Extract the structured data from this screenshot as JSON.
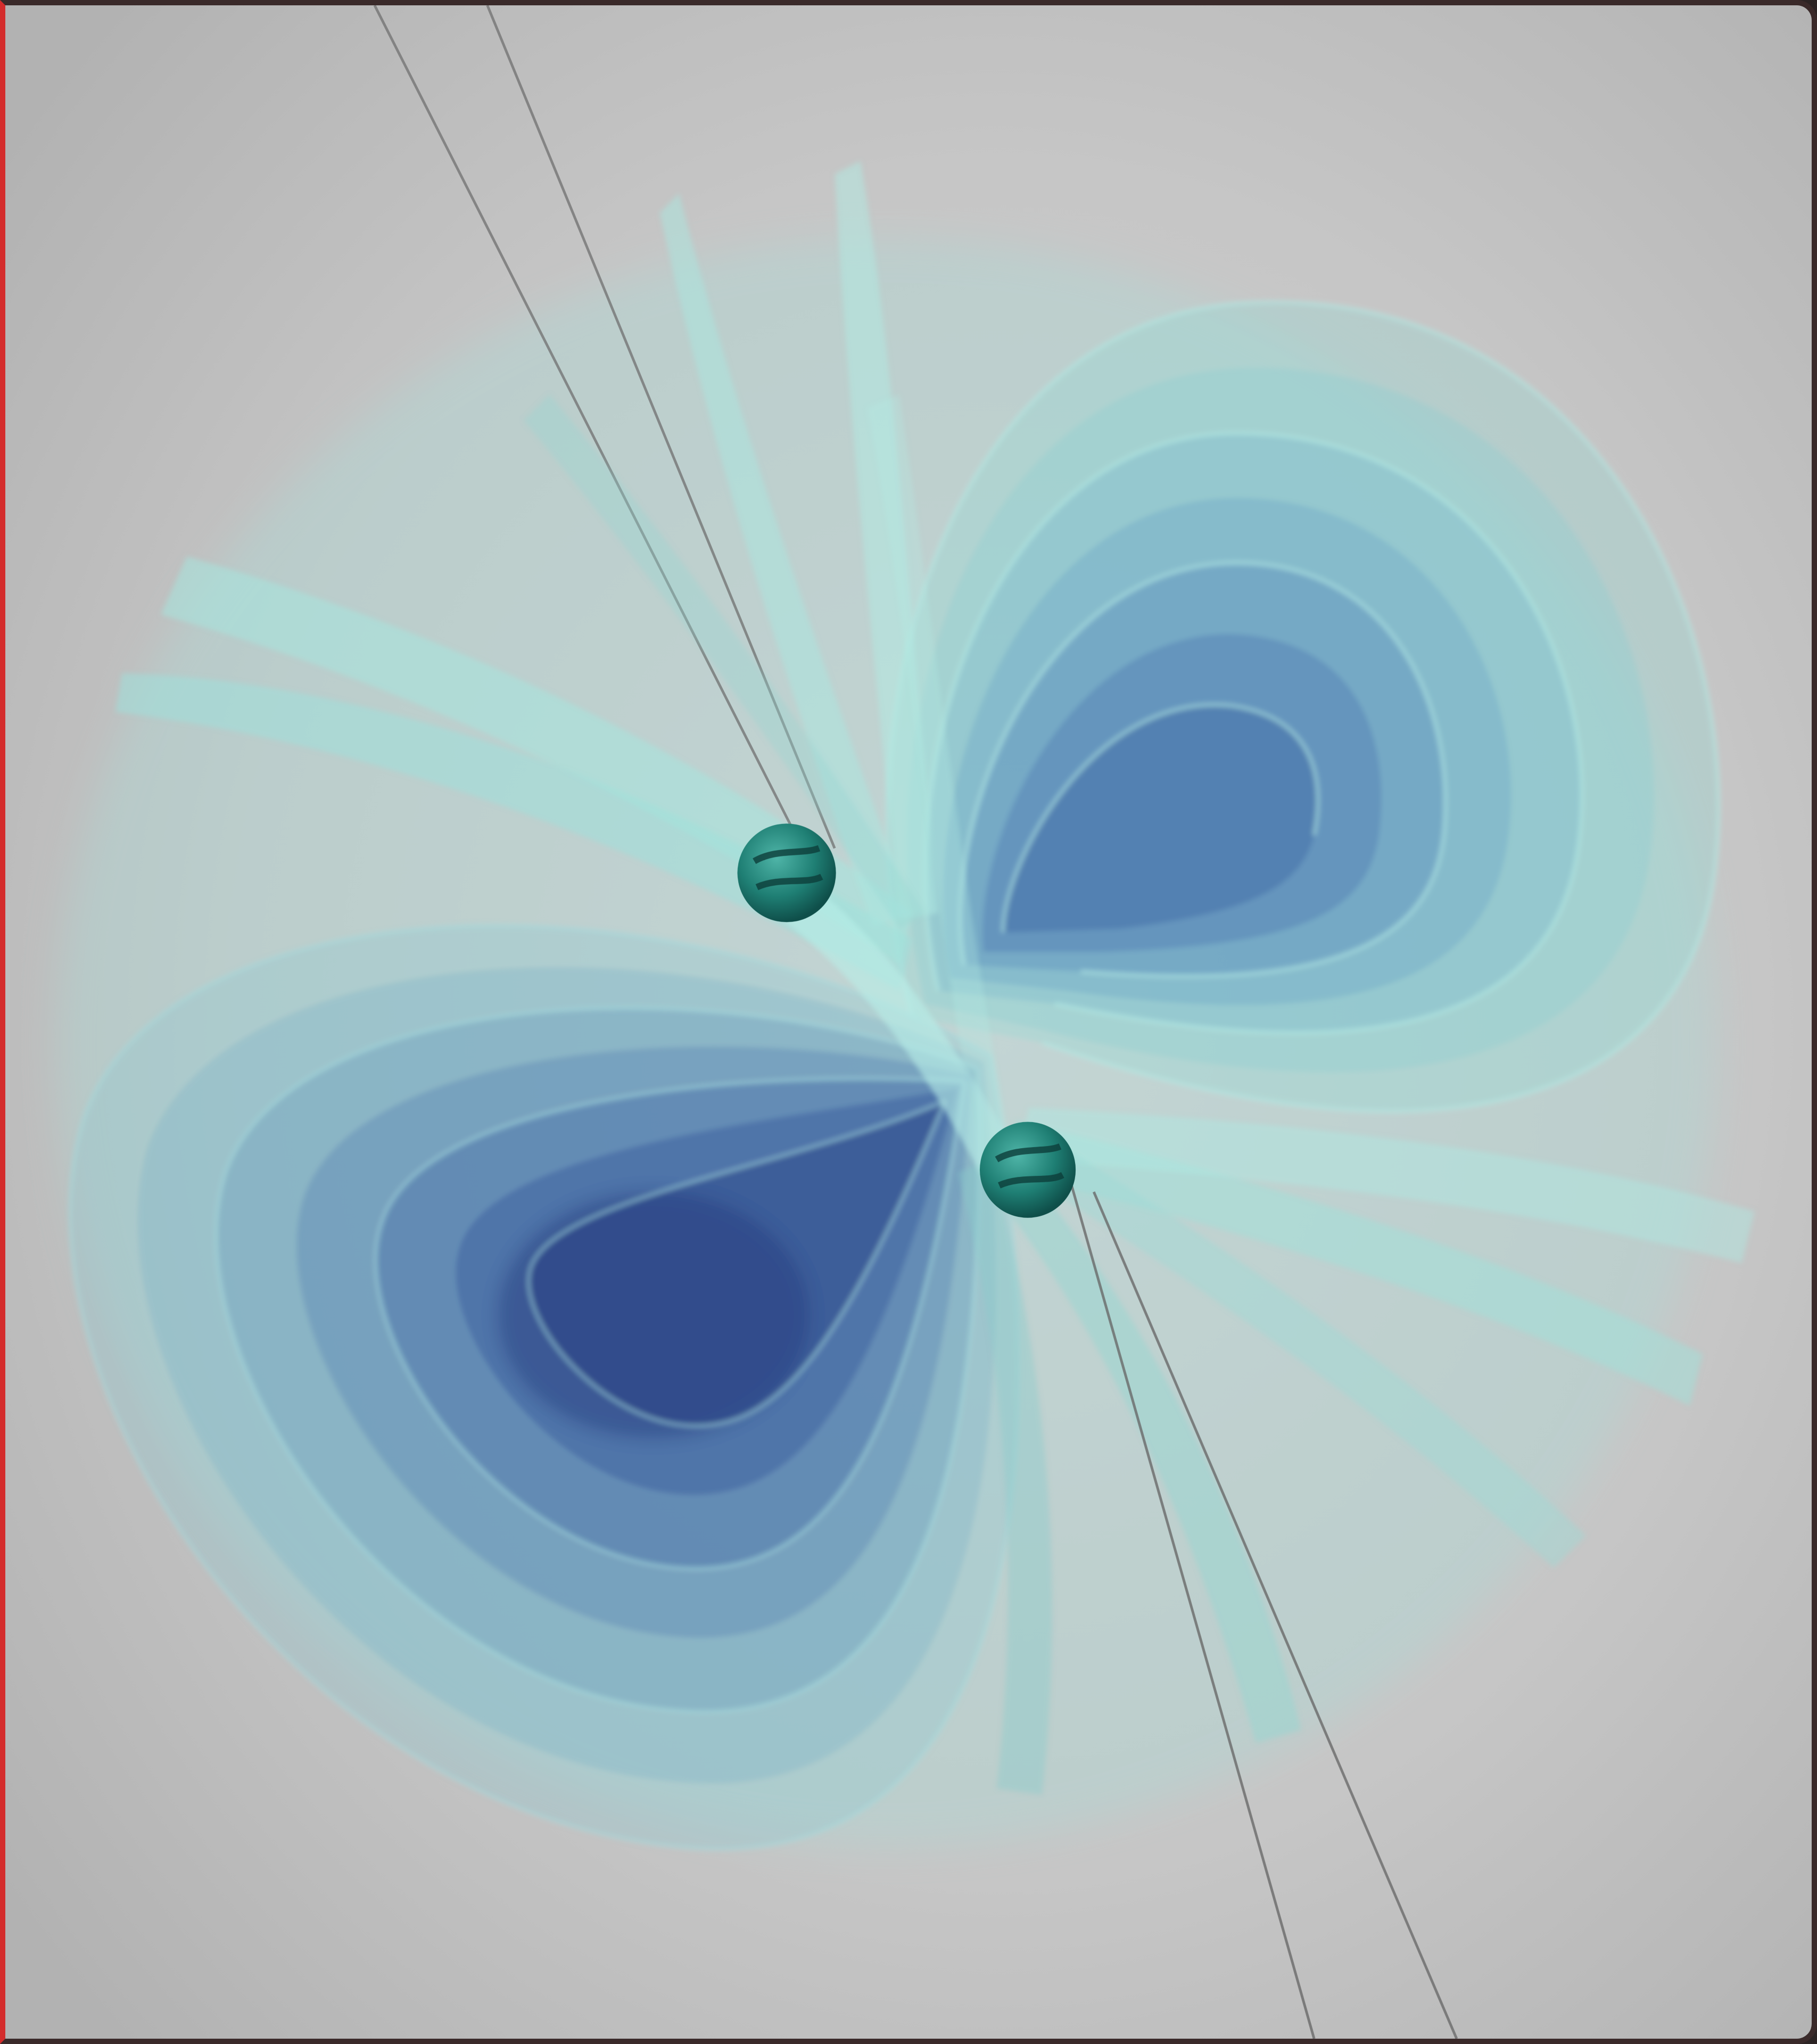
{
  "image": {
    "subject_icon": "field-lines-illustration",
    "colors": {
      "background_light": "#cdcdcd",
      "background_dark": "#b4b4b4",
      "lobe_deep": "#2c4a8c",
      "lobe_mid": "#4b7fb8",
      "ribbon_light": "#7ed8d2",
      "ribbon_pale": "#b2ece4",
      "particle": "#1f7f74",
      "axis_line": "#6a6a6a",
      "frame": "#3a2a2a",
      "frame_accent": "#d42c2c"
    }
  }
}
